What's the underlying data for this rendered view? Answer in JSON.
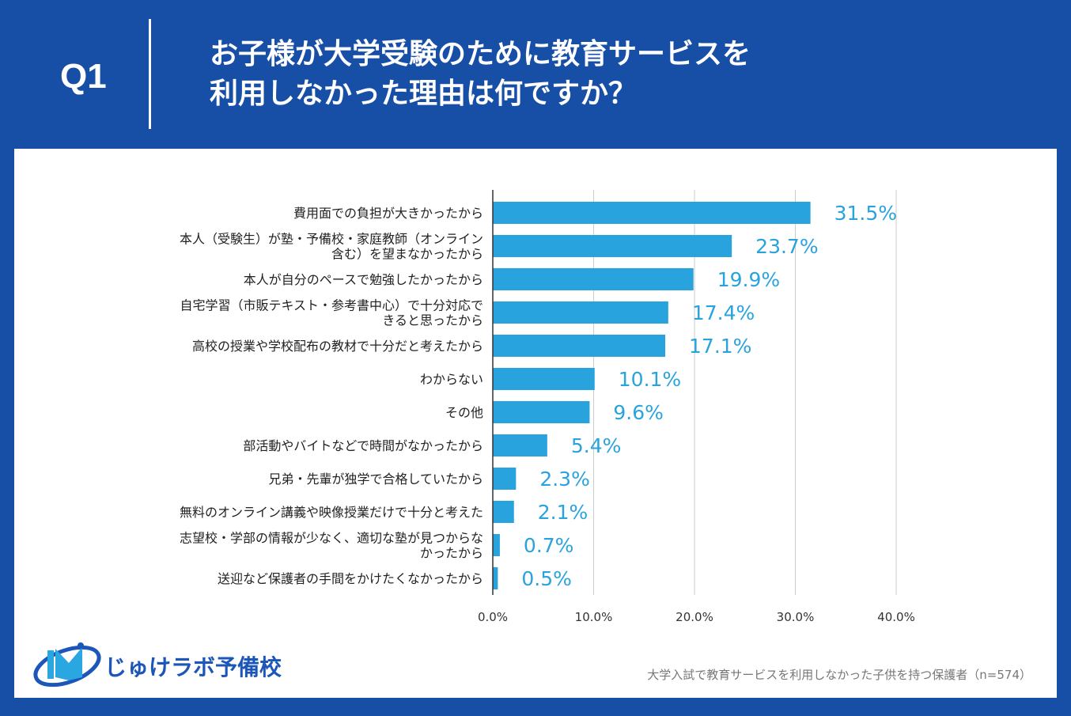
{
  "header": {
    "question_no": "Q1",
    "title": "お子様が大学受験のために教育サービスを\n利用しなかった理由は何ですか？"
  },
  "footnote": "大学入試で教育サービスを利用しなかった子供を持つ保護者（n=574）",
  "logo": {
    "text": "じゅけラボ予備校"
  },
  "colors": {
    "background": "#174ea6",
    "bar": "#29a3de",
    "label": "#29a3de"
  },
  "chart_data": {
    "type": "bar",
    "orientation": "horizontal",
    "categories": [
      "費用面での負担が大きかったから",
      "本人（受験生）が塾・予備校・家庭教師（オンライン含む）を望まなかったから",
      "本人が自分のペースで勉強したかったから",
      "自宅学習（市販テキスト・参考書中心）で十分対応できると思ったから",
      "高校の授業や学校配布の教材で十分だと考えたから",
      "わからない",
      "その他",
      "部活動やバイトなどで時間がなかったから",
      "兄弟・先輩が独学で合格していたから",
      "無料のオンライン講義や映像授業だけで十分と考えた",
      "志望校・学部の情報が少なく、適切な塾が見つからなかったから",
      "送迎など保護者の手間をかけたくなかったから"
    ],
    "category_lines": [
      [
        "費用面での負担が大きかったから"
      ],
      [
        "本人（受験生）が塾・予備校・家庭教師（オンライン",
        "含む）を望まなかったから"
      ],
      [
        "本人が自分のペースで勉強したかったから"
      ],
      [
        "自宅学習（市販テキスト・参考書中心）で十分対応で",
        "きると思ったから"
      ],
      [
        "高校の授業や学校配布の教材で十分だと考えたから"
      ],
      [
        "わからない"
      ],
      [
        "その他"
      ],
      [
        "部活動やバイトなどで時間がなかったから"
      ],
      [
        "兄弟・先輩が独学で合格していたから"
      ],
      [
        "無料のオンライン講義や映像授業だけで十分と考えた"
      ],
      [
        "志望校・学部の情報が少なく、適切な塾が見つからな",
        "かったから"
      ],
      [
        "送迎など保護者の手間をかけたくなかったから"
      ]
    ],
    "values": [
      31.5,
      23.7,
      19.9,
      17.4,
      17.1,
      10.1,
      9.6,
      5.4,
      2.3,
      2.1,
      0.7,
      0.5
    ],
    "data_labels": [
      "31.5%",
      "23.7%",
      "19.9%",
      "17.4%",
      "17.1%",
      "10.1%",
      "9.6%",
      "5.4%",
      "2.3%",
      "2.1%",
      "0.7%",
      "0.5%"
    ],
    "xlim": [
      0,
      40
    ],
    "x_ticks": [
      "0.0%",
      "10.0%",
      "20.0%",
      "30.0%",
      "40.0%"
    ],
    "grid": true
  }
}
